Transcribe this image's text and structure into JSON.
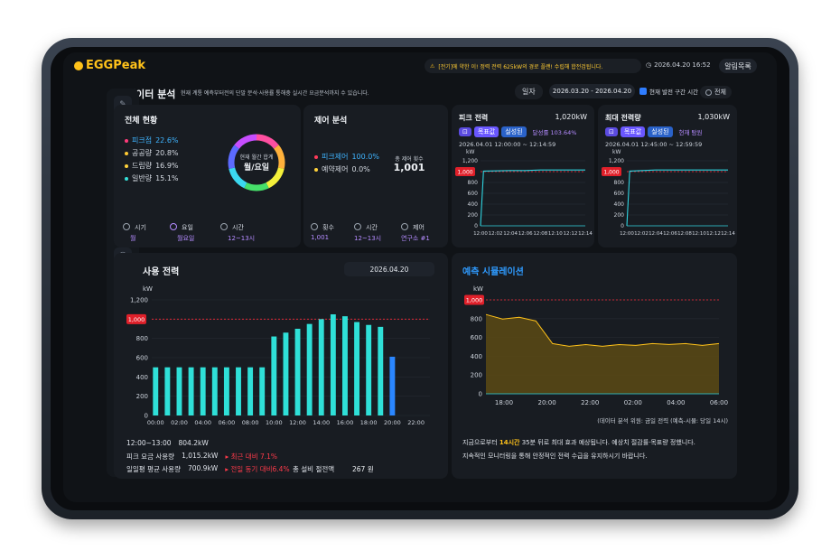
{
  "app": {
    "logo": "EGGPeak"
  },
  "header": {
    "alert": "[전기]에 약한 이! 정력 전력 625kW의 경로 플랜! 수립해 합전검됩니다.",
    "datetime": "2026.04.20 16:52",
    "alarm_btn": "알림목록"
  },
  "page": {
    "title": "데이터 분석",
    "desc": "현재 계통 예측부터전의 단말 분석·사용률 통해충 실시간 요금분석까지 수 있습니다.",
    "date_label": "일자",
    "date_range": "2026.03.20 - 2026.04.20",
    "checkbox_label": "현재 발전 구간 시간 선택",
    "all_label": "전체"
  },
  "sidebar": {
    "icons": [
      "pencil-icon",
      "chart-icon",
      "drop-icon",
      "wave-icon",
      "sliders-icon",
      "wifi-icon",
      "hexagon-icon",
      "user-icon",
      "users-icon",
      "grid-icon"
    ],
    "active_index": 6
  },
  "overall": {
    "title": "전체 현황",
    "rows": [
      {
        "label": "피크점",
        "value": "22.6%",
        "color": "#ff3b7a",
        "highlight": true
      },
      {
        "label": "공공량",
        "value": "20.8%",
        "color": "#ffc933"
      },
      {
        "label": "드립량",
        "value": "16.9%",
        "color": "#ffd23b"
      },
      {
        "label": "일반량",
        "value": "15.1%",
        "color": "#35e0d8"
      }
    ],
    "donut_line1": "현재 월간 합계",
    "donut_line2": "월/요일",
    "donut_colors": [
      "#ff4fa0",
      "#ffb13b",
      "#f4f03a",
      "#46e06a",
      "#3bd8f0",
      "#5c6bff",
      "#c74dff"
    ],
    "filters": [
      {
        "label": "시기",
        "value": "월"
      },
      {
        "label": "요일",
        "value": "월요일"
      },
      {
        "label": "시간",
        "value": "12~13시"
      }
    ]
  },
  "control": {
    "title": "제어 분석",
    "rows": [
      {
        "label": "피크제어",
        "value": "100.0%",
        "color": "#ff3b5a",
        "highlight": true
      },
      {
        "label": "예약제어",
        "value": "0.0%",
        "color": "#ffd23b"
      }
    ],
    "donut_line1": "총 제어 횟수",
    "donut_value": "1,001",
    "filters": [
      {
        "label": "횟수",
        "value": "1,001"
      },
      {
        "label": "시간",
        "value": "12~13시"
      },
      {
        "label": "제어",
        "value": "연구소 #1"
      }
    ]
  },
  "peak": {
    "title": "피크 전력",
    "value": "1,020kW",
    "tags": [
      "목표값",
      "실성된"
    ],
    "rate": "달성률 103.64%",
    "time": "2026.04.01 12:00:00 ~ 12:14:59",
    "unit": "kW",
    "threshold": "1,000",
    "y_ticks": [
      "1,200",
      "1,000",
      "800",
      "600",
      "400",
      "200",
      "0"
    ],
    "x_ticks": [
      "12:00",
      "12:02",
      "12:04",
      "12:06",
      "12:08",
      "12:10",
      "12:12",
      "12:14"
    ]
  },
  "maxpeak": {
    "title": "최대 전력량",
    "value": "1,030kW",
    "tags": [
      "목표값",
      "실성된"
    ],
    "rate": "현재 탐원",
    "time": "2026.04.01 12:45:00 ~ 12:59:59",
    "unit": "kW",
    "threshold": "1,000",
    "y_ticks": [
      "1,200",
      "1,000",
      "800",
      "600",
      "400",
      "200",
      "0"
    ],
    "x_ticks": [
      "12:00",
      "12:02",
      "12:04",
      "12:06",
      "12:08",
      "12:10",
      "12:12",
      "12:14"
    ]
  },
  "usage": {
    "title": "사용 전력",
    "date": "2026.04.20",
    "unit": "kW",
    "threshold": "1,000",
    "stats": [
      {
        "label": "12:00~13:00",
        "value": "804.2kW"
      },
      {
        "label": "피크 요금 사용량",
        "value": "1,015.2kW",
        "note": "▸ 최근 대비 7.1%"
      },
      {
        "label": "일일평 평균 사용량",
        "value": "700.9kW",
        "note": "▸ 전일 동기 대비6.4%"
      }
    ],
    "saving_label": "총 설비 절전액",
    "saving_value": "267 원"
  },
  "forecast": {
    "title": "예측 시뮬레이션",
    "unit": "kW",
    "threshold": "1,000",
    "y_ticks": [
      "1,000",
      "800",
      "600",
      "400",
      "200",
      "0"
    ],
    "x_ticks": [
      "18:00",
      "20:00",
      "22:00",
      "02:00",
      "04:00",
      "06:00"
    ],
    "footnote": "(데이터 분석 위원: 금일 전력 (예측-시뮬: 당일 14시)",
    "msg_prefix": "지금으로부터 ",
    "msg_highlight": "14시간",
    "msg_rest": " 35분 뒤로 최대 효과 예상됩니다. 예상치 절감률·목표량 정했니다.",
    "msg_line2": "지속적인 모니터링을 통해 안정적인 전력 수급을 유지하시기 바랍니다."
  },
  "chart_data": [
    {
      "type": "bar",
      "title": "사용 전력",
      "ylabel": "kW",
      "ylim": [
        0,
        1200
      ],
      "categories": [
        "00:00",
        "01:00",
        "02:00",
        "03:00",
        "04:00",
        "05:00",
        "06:00",
        "07:00",
        "08:00",
        "09:00",
        "10:00",
        "11:00",
        "12:00",
        "13:00",
        "14:00",
        "15:00",
        "16:00",
        "17:00",
        "18:00",
        "19:00",
        "20:00",
        "21:00",
        "22:00",
        "23:00"
      ],
      "x_ticks": [
        "00:00",
        "02:00",
        "04:00",
        "06:00",
        "08:00",
        "10:00",
        "12:00",
        "14:00",
        "16:00",
        "18:00",
        "20:00",
        "22:00"
      ],
      "y_ticks": [
        0,
        200,
        400,
        600,
        800,
        1000,
        1200
      ],
      "values": [
        500,
        500,
        500,
        500,
        500,
        500,
        500,
        500,
        500,
        500,
        820,
        860,
        900,
        950,
        1000,
        1050,
        1030,
        970,
        940,
        920,
        610,
        null,
        null,
        null
      ],
      "threshold": 1000
    },
    {
      "type": "line",
      "title": "피크 전력",
      "ylabel": "kW",
      "ylim": [
        0,
        1200
      ],
      "x": [
        "12:00",
        "12:02",
        "12:04",
        "12:06",
        "12:08",
        "12:10",
        "12:12",
        "12:14"
      ],
      "series": [
        {
          "name": "목표값",
          "values": [
            1000,
            1000,
            1000,
            1000,
            1000,
            1000,
            1000,
            1000
          ]
        },
        {
          "name": "실성된",
          "values": [
            0,
            1010,
            1020,
            1020,
            1030,
            1030,
            1030,
            1030
          ]
        }
      ]
    },
    {
      "type": "line",
      "title": "최대 전력량",
      "ylabel": "kW",
      "ylim": [
        0,
        1200
      ],
      "x": [
        "12:00",
        "12:02",
        "12:04",
        "12:06",
        "12:08",
        "12:10",
        "12:12",
        "12:14"
      ],
      "series": [
        {
          "name": "목표값",
          "values": [
            1000,
            1000,
            1000,
            1000,
            1000,
            1000,
            1000,
            1000
          ]
        },
        {
          "name": "실성된",
          "values": [
            0,
            1010,
            1030,
            1030,
            1030,
            1030,
            1030,
            1030
          ]
        }
      ]
    },
    {
      "type": "area",
      "title": "예측 시뮬레이션",
      "ylabel": "kW",
      "ylim": [
        0,
        1000
      ],
      "x": [
        "17:00",
        "18:00",
        "19:00",
        "20:00",
        "21:00",
        "22:00",
        "23:00",
        "00:00",
        "01:00",
        "02:00",
        "03:00",
        "04:00",
        "05:00",
        "06:00",
        "06:30"
      ],
      "series": [
        {
          "name": "예측",
          "values": [
            830,
            810,
            800,
            790,
            520,
            520,
            510,
            520,
            510,
            530,
            520,
            540,
            520,
            530,
            520
          ]
        }
      ]
    }
  ]
}
